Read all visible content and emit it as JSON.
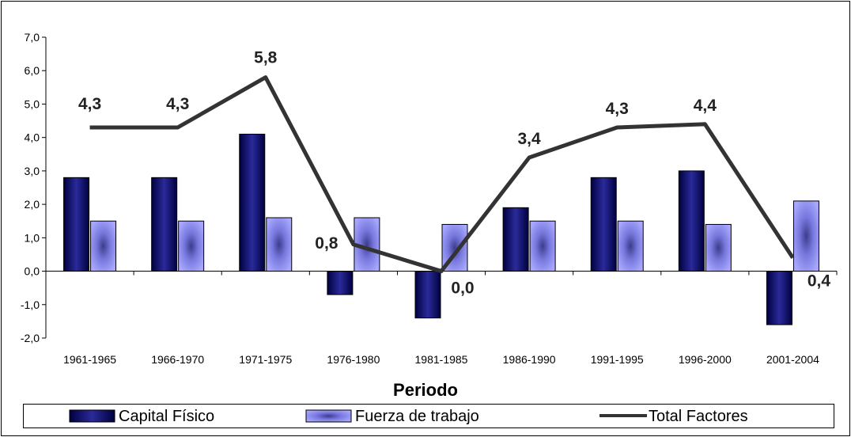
{
  "chart_data": {
    "type": "bar",
    "categories": [
      "1961-1965",
      "1966-1970",
      "1971-1975",
      "1976-1980",
      "1981-1985",
      "1986-1990",
      "1991-1995",
      "1996-2000",
      "2001-2004"
    ],
    "series": [
      {
        "name": "Capital Físico",
        "type": "bar",
        "values": [
          2.8,
          2.8,
          4.1,
          -0.7,
          -1.4,
          1.9,
          2.8,
          3.0,
          -1.6
        ]
      },
      {
        "name": "Fuerza de trabajo",
        "type": "bar",
        "values": [
          1.5,
          1.5,
          1.6,
          1.6,
          1.4,
          1.5,
          1.5,
          1.4,
          2.1
        ]
      },
      {
        "name": "Total Factores",
        "type": "line",
        "values": [
          4.3,
          4.3,
          5.8,
          0.8,
          0.0,
          3.4,
          4.3,
          4.4,
          0.4
        ],
        "labels": [
          "4,3",
          "4,3",
          "5,8",
          "0,8",
          "0,0",
          "3,4",
          "4,3",
          "4,4",
          "0,4"
        ]
      }
    ],
    "xlabel": "Periodo",
    "ylabel": "",
    "ylim": [
      -2.0,
      7.0
    ],
    "yticks": [
      "-2,0",
      "-1,0",
      "0,0",
      "1,0",
      "2,0",
      "3,0",
      "4,0",
      "5,0",
      "6,0",
      "7,0"
    ],
    "grid": false,
    "legend_position": "bottom",
    "colors": {
      "capital": "#0a0a5e",
      "trabajo": "#9999ff",
      "total": "#333333"
    }
  }
}
